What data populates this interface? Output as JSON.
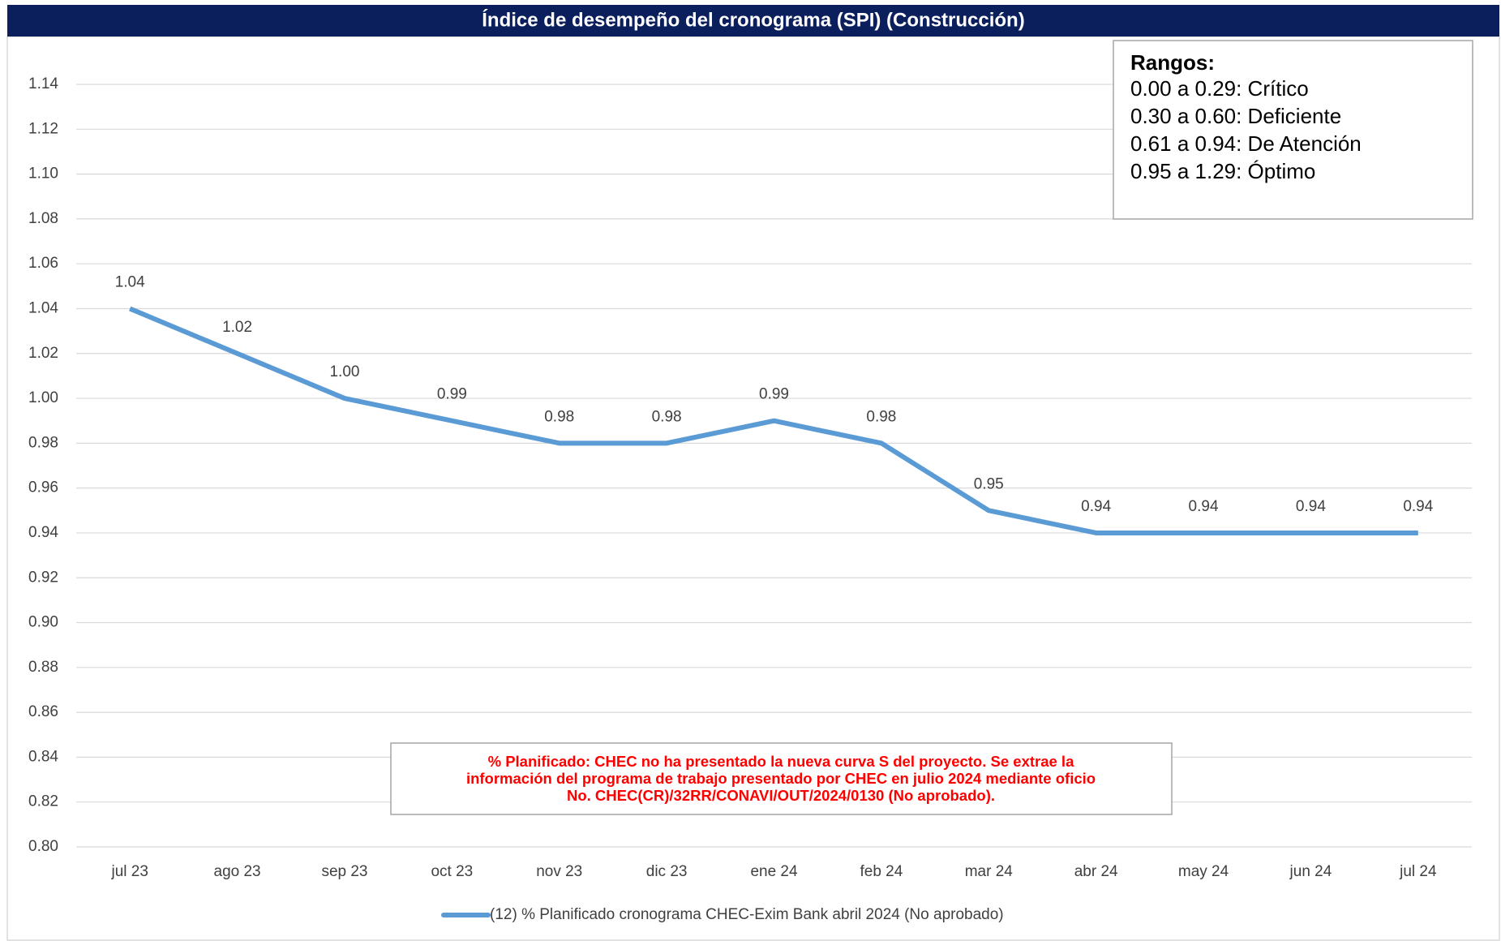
{
  "chart_data": {
    "type": "line",
    "title": "Índice de desempeño del cronograma (SPI) (Construcción)",
    "categories": [
      "jul 23",
      "ago 23",
      "sep 23",
      "oct 23",
      "nov 23",
      "dic 23",
      "ene 24",
      "feb 24",
      "mar 24",
      "abr 24",
      "may 24",
      "jun 24",
      "jul 24"
    ],
    "series": [
      {
        "name": "(12) % Planificado cronograma CHEC-Exim Bank abril 2024 (No aprobado)",
        "color": "#5b9bd5",
        "values": [
          1.04,
          1.02,
          1.0,
          0.99,
          0.98,
          0.98,
          0.99,
          0.98,
          0.95,
          0.94,
          0.94,
          0.94,
          0.94
        ],
        "value_labels": [
          "1.04",
          "1.02",
          "1.00",
          "0.99",
          "0.98",
          "0.98",
          "0.99",
          "0.98",
          "0.95",
          "0.94",
          "0.94",
          "0.94",
          "0.94"
        ]
      }
    ],
    "ylim": [
      0.8,
      1.14
    ],
    "yticks": [
      {
        "value": 0.8,
        "label": "0.80"
      },
      0.82,
      0.84,
      0.86,
      0.88,
      {
        "value": 0.9,
        "label": "0.90"
      },
      0.92,
      0.94,
      0.96,
      0.98,
      {
        "value": 1.0,
        "label": "1.00"
      },
      1.02,
      1.04,
      1.06,
      1.08,
      {
        "value": 1.1,
        "label": "1.10"
      },
      1.12,
      1.14
    ],
    "grid": true,
    "legend": "bottom",
    "ranges": {
      "heading": "Rangos:",
      "lines": [
        "0.00 a 0.29: Crítico",
        "0.30 a 0.60: Deficiente",
        "0.61 a 0.94: De Atención",
        "0.95 a 1.29: Óptimo"
      ]
    },
    "note": [
      "% Planificado: CHEC no ha presentado la nueva curva S del proyecto. Se extrae la",
      "información del programa de trabajo presentado por CHEC en julio 2024 mediante oficio",
      "No. CHEC(CR)/32RR/CONAVI/OUT/2024/0130 (No aprobado)."
    ]
  }
}
